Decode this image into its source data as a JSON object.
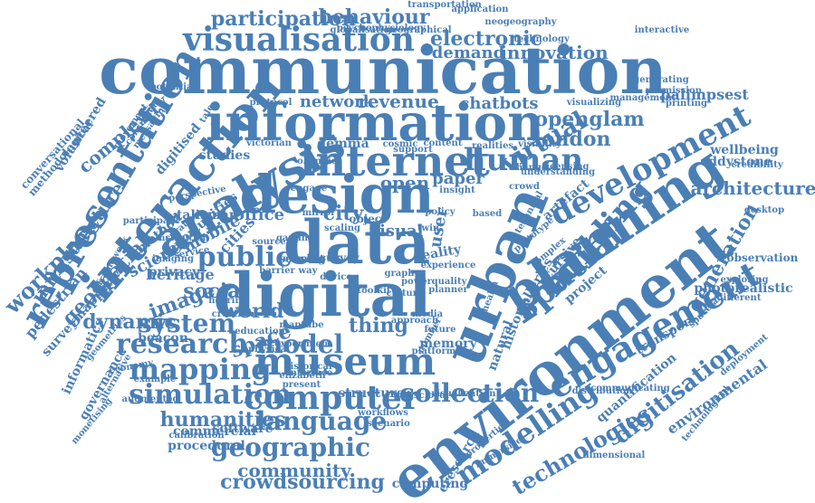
{
  "word_cloud": {
    "color": "#4a7fb5",
    "words": [
      "communication",
      "information",
      "environment",
      "urban",
      "data",
      "design",
      "digital",
      "internet",
      "analysis",
      "planning",
      "interaction",
      "representation",
      "visualisation",
      "museum",
      "mapping",
      "computer",
      "engagement",
      "spatial",
      "development",
      "human",
      "modelling",
      "simulation",
      "research",
      "language",
      "collection",
      "system",
      "geographic",
      "model",
      "building",
      "digitisation",
      "public",
      "participation",
      "behaviour",
      "electronic",
      "technologies",
      "virtual",
      "london",
      "openglam",
      "architecture",
      "humanities",
      "crowdsourcing",
      "workplace",
      "geospatial",
      "social",
      "world",
      "city",
      "space",
      "thing",
      "image",
      "mobile",
      "science",
      "cities",
      "dynamic",
      "complexity",
      "infrastructure",
      "pedestrian",
      "generation",
      "environmental",
      "community",
      "innovation",
      "demand",
      "revenue",
      "network",
      "chatbots",
      "paper",
      "open",
      "office",
      "visual",
      "user",
      "heritage",
      "transport",
      "palimpsest",
      "wellbeing",
      "eddystone",
      "governance",
      "informatics",
      "software",
      "commercial",
      "procedural",
      "computing",
      "eresearch",
      "recursive",
      "artefact",
      "reality",
      "galleries",
      "project",
      "history",
      "natural",
      "memory",
      "structure",
      "historical",
      "interface",
      "scenario",
      "workflows",
      "calibration",
      "augmented",
      "example",
      "beacon",
      "creation",
      "hearing",
      "maptube",
      "experiment",
      "elizabeth",
      "present",
      "privacy",
      "method",
      "talisman",
      "studies",
      "gemma",
      "cosmic",
      "content",
      "realities",
      "change",
      "understanding",
      "credibility",
      "observation",
      "exploring",
      "photorealistic",
      "different",
      "spacelab",
      "quantification",
      "dimensional",
      "immersive",
      "properties",
      "distribution",
      "communicating",
      "technological",
      "deployment",
      "generating",
      "permission",
      "management",
      "printing",
      "visualizing",
      "interactive",
      "technology",
      "neogeography",
      "transportation",
      "application",
      "geographical",
      "globalisation",
      "psychophysiology",
      "conversational",
      "methodological",
      "volunteered",
      "movement",
      "consumer",
      "messaging",
      "potential",
      "digitised",
      "perspective",
      "opportunities",
      "surveymapper",
      "monetising",
      "alternative",
      "economy",
      "service",
      "imaging",
      "protocol",
      "tale",
      "culture",
      "toolkit",
      "health",
      "media",
      "number",
      "future",
      "quality",
      "based",
      "experience",
      "technical",
      "visualization",
      "desktop",
      "crowd",
      "policy",
      "insight",
      "approach",
      "platform",
      "disclosure",
      "planner",
      "twin",
      "physical",
      "education",
      "geometries",
      "navigation",
      "framework",
      "participant",
      "institution",
      "curation",
      "victorian",
      "support",
      "visibility",
      "licensing",
      "sensing",
      "gaming",
      "scaling",
      "device",
      "survey",
      "object",
      "way",
      "graph",
      "power",
      "mirror",
      "engage",
      "element",
      "source",
      "barrier",
      "olympic",
      "prototype",
      "complex",
      "digitisation",
      "virtual"
    ]
  }
}
